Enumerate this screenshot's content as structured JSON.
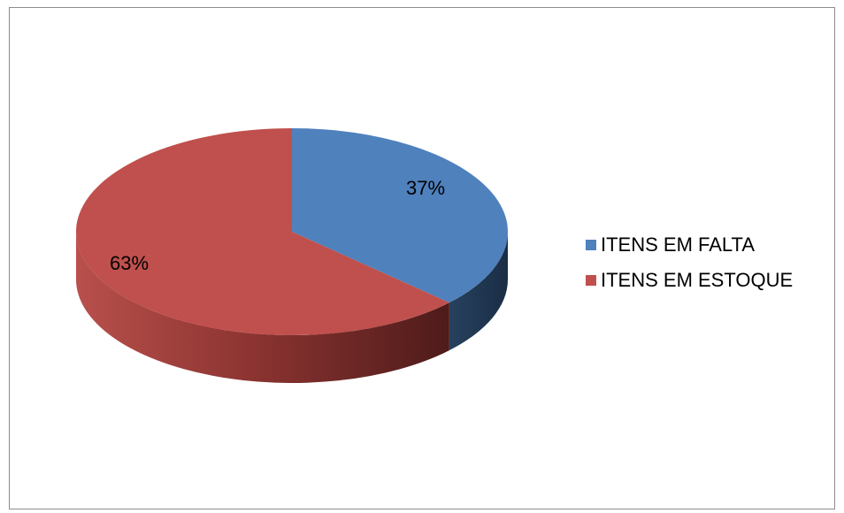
{
  "chart_data": {
    "type": "pie",
    "style": "3d",
    "categories": [
      "ITENS EM FALTA",
      "ITENS EM ESTOQUE"
    ],
    "values": [
      37,
      63
    ],
    "labels": [
      "37%",
      "63%"
    ],
    "colors": [
      "#4f81bd",
      "#c0504d"
    ],
    "legend": "right",
    "title": ""
  }
}
